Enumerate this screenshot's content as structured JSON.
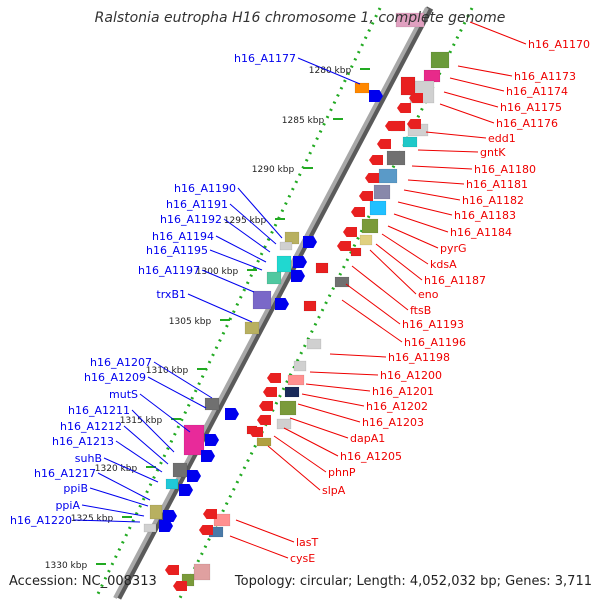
{
  "title": "Ralstonia eutropha H16 chromosome 1, complete genome",
  "accession": "Accession: NC_008313",
  "topology": "Topology: circular; Length: 4,052,032 bp; Genes: 3,711",
  "colors": {
    "forward_strand": "#0000ee",
    "reverse_strand": "#ee0000",
    "backbone": "#8a8a8a",
    "tick_dots": "#22aa22"
  },
  "chart_data": {
    "type": "diagram",
    "kbp_ticks": [
      "1280 kbp",
      "1285 kbp",
      "1290 kbp",
      "1295 kbp",
      "1300 kbp",
      "1305 kbp",
      "1310 kbp",
      "1315 kbp",
      "1320 kbp",
      "1325 kbp",
      "1330 kbp"
    ],
    "forward_genes": [
      "h16_A1177",
      "h16_A1190",
      "h16_A1191",
      "h16_A1192",
      "h16_A1194",
      "h16_A1195",
      "h16_A1197",
      "trxB1",
      "h16_A1207",
      "h16_A1209",
      "mutS",
      "h16_A1211",
      "h16_A1212",
      "h16_A1213",
      "suhB",
      "h16_A1217",
      "ppiB",
      "ppiA",
      "h16_A1220"
    ],
    "reverse_genes": [
      "h16_A1170",
      "h16_A1173",
      "h16_A1174",
      "h16_A1175",
      "h16_A1176",
      "edd1",
      "gntK",
      "h16_A1180",
      "h16_A1181",
      "h16_A1182",
      "h16_A1183",
      "h16_A1184",
      "pyrG",
      "kdsA",
      "h16_A1187",
      "eno",
      "ftsB",
      "h16_A1193",
      "h16_A1196",
      "h16_A1198",
      "h16_A1200",
      "h16_A1201",
      "h16_A1202",
      "h16_A1203",
      "dapA1",
      "h16_A1205",
      "phnP",
      "slpA",
      "lasT",
      "cysE"
    ]
  }
}
